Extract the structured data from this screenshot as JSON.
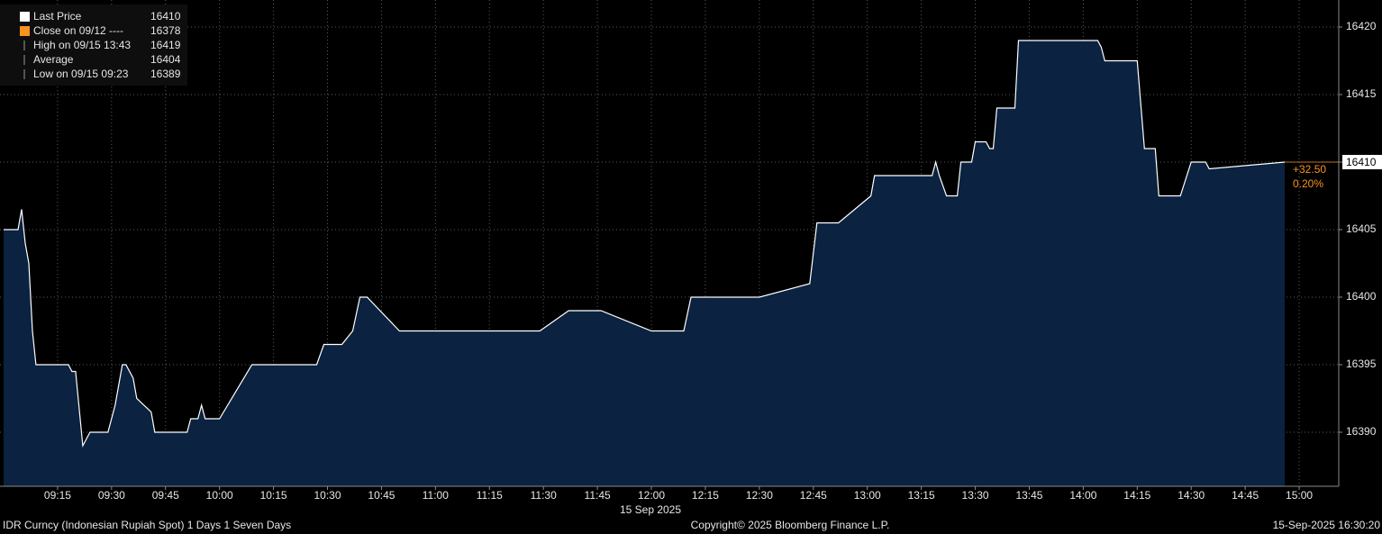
{
  "chart_data": {
    "type": "area",
    "x": [
      "09:00",
      "09:04",
      "09:05",
      "09:06",
      "09:07",
      "09:08",
      "09:09",
      "09:18",
      "09:19",
      "09:20",
      "09:22",
      "09:24",
      "09:29",
      "09:31",
      "09:33",
      "09:34",
      "09:36",
      "09:37",
      "09:41",
      "09:42",
      "09:51",
      "09:52",
      "09:54",
      "09:55",
      "09:56",
      "10:00",
      "10:09",
      "10:27",
      "10:29",
      "10:34",
      "10:37",
      "10:39",
      "10:41",
      "10:50",
      "11:29",
      "11:37",
      "11:46",
      "12:00",
      "12:09",
      "12:11",
      "12:30",
      "12:44",
      "12:46",
      "12:52",
      "13:01",
      "13:02",
      "13:18",
      "13:19",
      "13:20",
      "13:22",
      "13:25",
      "13:26",
      "13:29",
      "13:30",
      "13:33",
      "13:34",
      "13:35",
      "13:36",
      "13:41",
      "13:42",
      "14:04",
      "14:05",
      "14:06",
      "14:15",
      "14:17",
      "14:20",
      "14:21",
      "14:27",
      "14:30",
      "14:34",
      "14:35",
      "14:56"
    ],
    "series": [
      {
        "name": "Last Price",
        "color": "#ffffff",
        "fill": "#0b2240",
        "values": [
          16405,
          16405,
          16406.5,
          16404,
          16402.5,
          16397.5,
          16395,
          16395,
          16394.5,
          16394.5,
          16389,
          16390,
          16390,
          16392,
          16395,
          16395,
          16394,
          16392.5,
          16391.5,
          16390,
          16390,
          16391,
          16391,
          16392,
          16391,
          16391,
          16395,
          16395,
          16396.5,
          16396.5,
          16397.5,
          16400,
          16400,
          16397.5,
          16397.5,
          16399,
          16399,
          16397.5,
          16397.5,
          16400,
          16400,
          16401,
          16405.5,
          16405.5,
          16407.5,
          16409,
          16409,
          16410,
          16409,
          16407.5,
          16407.5,
          16410,
          16410,
          16411.5,
          16411.5,
          16411,
          16411,
          16414,
          16414,
          16419,
          16419,
          16418.5,
          16417.5,
          16417.5,
          16411,
          16411,
          16407.5,
          16407.5,
          16410,
          16410,
          16409.5,
          16410
        ]
      }
    ],
    "xlim": [
      "08:59",
      "15:11"
    ],
    "xticks": [
      "09:15",
      "09:30",
      "09:45",
      "10:00",
      "10:15",
      "10:30",
      "10:45",
      "11:00",
      "11:15",
      "11:30",
      "11:45",
      "12:00",
      "12:15",
      "12:30",
      "12:45",
      "13:00",
      "13:15",
      "13:30",
      "13:45",
      "14:00",
      "14:15",
      "14:30",
      "14:45",
      "15:00"
    ],
    "ylim": [
      16386,
      16422
    ],
    "yticks": [
      16390,
      16395,
      16400,
      16405,
      16410,
      16415,
      16420
    ],
    "grid": true,
    "x_date_label": "15 Sep 2025",
    "last_price": 16410,
    "change_label": "+32.50",
    "change_pct_label": "0.20%",
    "legend": [
      {
        "label": "Last Price",
        "value": 16410,
        "color": "#ffffff"
      },
      {
        "label": "Close on 09/12 ----",
        "value": 16378,
        "color": "#f7931e"
      },
      {
        "label": "High on 09/15 13:43",
        "value": 16419
      },
      {
        "label": "Average",
        "value": 16404
      },
      {
        "label": "Low on 09/15 09:23",
        "value": 16389
      }
    ],
    "footer_left": "IDR Curncy (Indonesian Rupiah Spot) 1 Days 1 Seven Days",
    "footer_center": "Copyright© 2025 Bloomberg Finance L.P.",
    "footer_right": "15-Sep-2025 16:30:20"
  }
}
